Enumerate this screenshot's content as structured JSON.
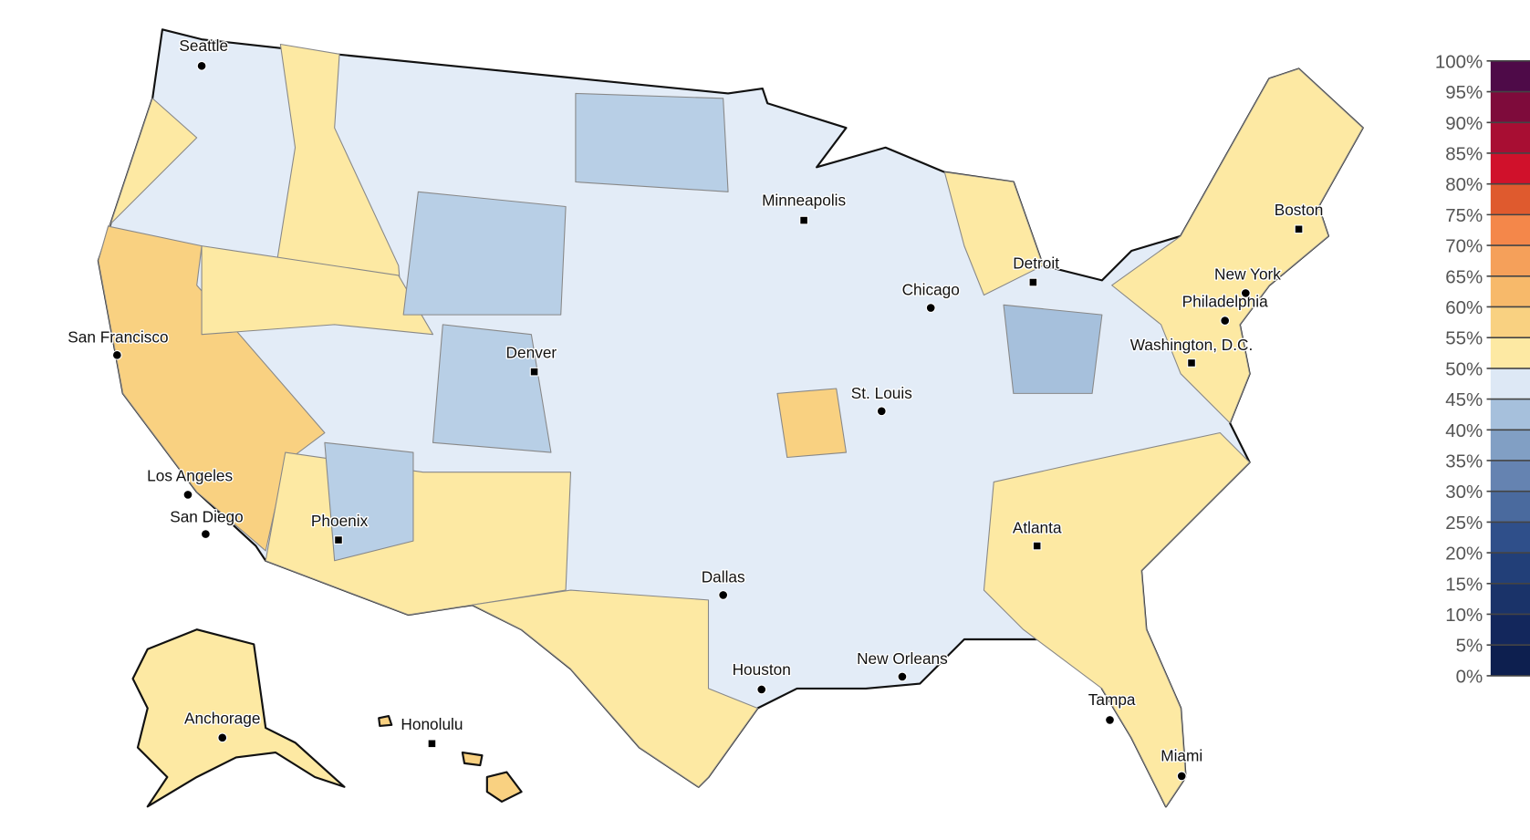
{
  "map": {
    "cities": [
      "Seattle",
      "San Francisco",
      "Los Angeles",
      "San Diego",
      "Phoenix",
      "Denver",
      "Minneapolis",
      "Chicago",
      "Detroit",
      "St. Louis",
      "Dallas",
      "Houston",
      "New Orleans",
      "Atlanta",
      "Tampa",
      "Miami",
      "Washington, D.C.",
      "Philadelphia",
      "New York",
      "Boston",
      "Anchorage",
      "Honolulu"
    ],
    "legend": {
      "range": [
        0,
        100
      ],
      "ticks": [
        {
          "value": 0,
          "label": "0%"
        },
        {
          "value": 5,
          "label": "5%"
        },
        {
          "value": 10,
          "label": "10%"
        },
        {
          "value": 15,
          "label": "15%"
        },
        {
          "value": 20,
          "label": "20%"
        },
        {
          "value": 25,
          "label": "25%"
        },
        {
          "value": 30,
          "label": "30%"
        },
        {
          "value": 35,
          "label": "35%"
        },
        {
          "value": 40,
          "label": "40%"
        },
        {
          "value": 45,
          "label": "45%"
        },
        {
          "value": 50,
          "label": "50%"
        },
        {
          "value": 55,
          "label": "55%"
        },
        {
          "value": 60,
          "label": "60%"
        },
        {
          "value": 65,
          "label": "65%"
        },
        {
          "value": 70,
          "label": "70%"
        },
        {
          "value": 75,
          "label": "75%"
        },
        {
          "value": 80,
          "label": "80%"
        },
        {
          "value": 85,
          "label": "85%"
        },
        {
          "value": 90,
          "label": "90%"
        },
        {
          "value": 95,
          "label": "95%"
        },
        {
          "value": 100,
          "label": "100%"
        }
      ],
      "colors": [
        "#0d1f4f",
        "#13275c",
        "#1a3369",
        "#223f78",
        "#2f4f8a",
        "#4a6a9e",
        "#6583b1",
        "#819fc4",
        "#a6c0dc",
        "#dde8f5",
        "#fde9a3",
        "#f9d181",
        "#f7b96a",
        "#f5a05a",
        "#f4874a",
        "#df5a2e",
        "#d0112b",
        "#a80e33",
        "#7e0b3b",
        "#4e0a48"
      ]
    }
  }
}
